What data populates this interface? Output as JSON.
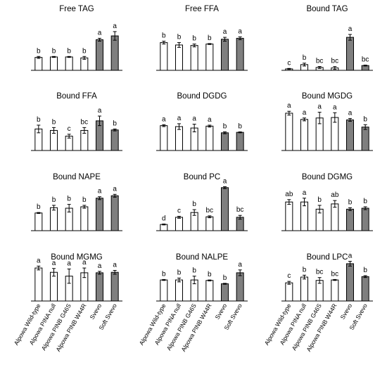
{
  "figure": {
    "categories": [
      "Alpowa Wild-type",
      "Alpowa PINA null",
      "Alpowa PINB G46S",
      "Alpowa PINB W44R",
      "Svevo",
      "Soft Svevo"
    ],
    "bar_colors": [
      "#ffffff",
      "#ffffff",
      "#ffffff",
      "#ffffff",
      "#7f7f7f",
      "#7f7f7f"
    ],
    "bar_stroke": "#000000"
  },
  "chart_data": [
    {
      "type": "bar",
      "title": "Free TAG",
      "categories": [
        "Alpowa Wild-type",
        "Alpowa PINA null",
        "Alpowa PINB G46S",
        "Alpowa PINB W44R",
        "Svevo",
        "Soft Svevo"
      ],
      "values": [
        27,
        28,
        28,
        26,
        64,
        72
      ],
      "errors": [
        2,
        1,
        1,
        3,
        3,
        9
      ],
      "letters": [
        "b",
        "b",
        "b",
        "b",
        "a",
        "a"
      ],
      "ylim": [
        0,
        100
      ],
      "show_x_labels": false
    },
    {
      "type": "bar",
      "title": "Free FFA",
      "categories": [
        "Alpowa Wild-type",
        "Alpowa PINA null",
        "Alpowa PINB G46S",
        "Alpowa PINB W44R",
        "Svevo",
        "Soft Svevo"
      ],
      "values": [
        58,
        53,
        52,
        55,
        65,
        67
      ],
      "errors": [
        3,
        5,
        3,
        1,
        4,
        3
      ],
      "letters": [
        "b",
        "b",
        "b",
        "b",
        "a",
        "a"
      ],
      "ylim": [
        0,
        100
      ],
      "show_x_labels": false
    },
    {
      "type": "bar",
      "title": "Bound TAG",
      "categories": [
        "Alpowa Wild-type",
        "Alpowa PINA null",
        "Alpowa PINB G46S",
        "Alpowa PINB W44R",
        "Svevo",
        "Soft Svevo"
      ],
      "values": [
        3,
        12,
        6,
        5,
        69,
        10
      ],
      "errors": [
        1,
        3,
        2,
        3,
        6,
        1
      ],
      "letters": [
        "c",
        "b",
        "bc",
        "bc",
        "a",
        "bc"
      ],
      "ylim": [
        0,
        100
      ],
      "show_x_labels": false
    },
    {
      "type": "bar",
      "title": "Bound FFA",
      "categories": [
        "Alpowa Wild-type",
        "Alpowa PINA null",
        "Alpowa PINB G46S",
        "Alpowa PINB W44R",
        "Svevo",
        "Soft Svevo"
      ],
      "values": [
        45,
        42,
        30,
        42,
        62,
        43
      ],
      "errors": [
        8,
        6,
        4,
        6,
        10,
        2
      ],
      "letters": [
        "b",
        "b",
        "c",
        "bc",
        "a",
        "b"
      ],
      "ylim": [
        0,
        100
      ],
      "show_x_labels": false
    },
    {
      "type": "bar",
      "title": "Bound DGDG",
      "categories": [
        "Alpowa Wild-type",
        "Alpowa PINA null",
        "Alpowa PINB G46S",
        "Alpowa PINB W44R",
        "Svevo",
        "Soft Svevo"
      ],
      "values": [
        52,
        50,
        47,
        51,
        37,
        38
      ],
      "errors": [
        2,
        6,
        8,
        2,
        2,
        1
      ],
      "letters": [
        "a",
        "a",
        "a",
        "a",
        "b",
        "b"
      ],
      "ylim": [
        0,
        100
      ],
      "show_x_labels": false
    },
    {
      "type": "bar",
      "title": "Bound MGDG",
      "categories": [
        "Alpowa Wild-type",
        "Alpowa PINA null",
        "Alpowa PINB G46S",
        "Alpowa PINB W44R",
        "Svevo",
        "Soft Svevo"
      ],
      "values": [
        78,
        65,
        68,
        69,
        64,
        49
      ],
      "errors": [
        4,
        3,
        12,
        10,
        3,
        5
      ],
      "letters": [
        "a",
        "a",
        "a",
        "a",
        "a",
        "b"
      ],
      "ylim": [
        0,
        100
      ],
      "show_x_labels": false
    },
    {
      "type": "bar",
      "title": "Bound NAPE",
      "categories": [
        "Alpowa Wild-type",
        "Alpowa PINA null",
        "Alpowa PINB G46S",
        "Alpowa PINB W44R",
        "Svevo",
        "Soft Svevo"
      ],
      "values": [
        37,
        48,
        47,
        50,
        68,
        73
      ],
      "errors": [
        1,
        5,
        8,
        3,
        3,
        3
      ],
      "letters": [
        "b",
        "b",
        "b",
        "b",
        "a",
        "a"
      ],
      "ylim": [
        0,
        100
      ],
      "show_x_labels": false
    },
    {
      "type": "bar",
      "title": "Bound PC",
      "categories": [
        "Alpowa Wild-type",
        "Alpowa PINA null",
        "Alpowa PINB G46S",
        "Alpowa PINB W44R",
        "Svevo",
        "Soft Svevo"
      ],
      "values": [
        13,
        28,
        38,
        29,
        90,
        28
      ],
      "errors": [
        1,
        2,
        6,
        2,
        2,
        4
      ],
      "letters": [
        "d",
        "c",
        "b",
        "bc",
        "a",
        "bc"
      ],
      "ylim": [
        0,
        100
      ],
      "show_x_labels": false
    },
    {
      "type": "bar",
      "title": "Bound DGMG",
      "categories": [
        "Alpowa Wild-type",
        "Alpowa PINA null",
        "Alpowa PINB G46S",
        "Alpowa PINB W44R",
        "Svevo",
        "Soft Svevo"
      ],
      "values": [
        60,
        60,
        45,
        56,
        45,
        47
      ],
      "errors": [
        5,
        8,
        8,
        7,
        3,
        3
      ],
      "letters": [
        "ab",
        "a",
        "b",
        "ab",
        "b",
        "b"
      ],
      "ylim": [
        0,
        100
      ],
      "show_x_labels": false
    },
    {
      "type": "bar",
      "title": "Bound MGMG",
      "categories": [
        "Alpowa Wild-type",
        "Alpowa PINA null",
        "Alpowa PINB G46S",
        "Alpowa PINB W44R",
        "Svevo",
        "Soft Svevo"
      ],
      "values": [
        69,
        60,
        52,
        59,
        59,
        60
      ],
      "errors": [
        4,
        8,
        15,
        10,
        3,
        4
      ],
      "letters": [
        "a",
        "a",
        "a",
        "a",
        "a",
        "a"
      ],
      "ylim": [
        0,
        100
      ],
      "show_x_labels": true
    },
    {
      "type": "bar",
      "title": "Bound NALPE",
      "categories": [
        "Alpowa Wild-type",
        "Alpowa PINA null",
        "Alpowa PINB G46S",
        "Alpowa PINB W44R",
        "Svevo",
        "Soft Svevo"
      ],
      "values": [
        44,
        44,
        44,
        43,
        36,
        59
      ],
      "errors": [
        1,
        4,
        8,
        1,
        1,
        6
      ],
      "letters": [
        "b",
        "b",
        "b",
        "b",
        "b",
        "a"
      ],
      "ylim": [
        0,
        100
      ],
      "show_x_labels": true
    },
    {
      "type": "bar",
      "title": "Bound LPC",
      "categories": [
        "Alpowa Wild-type",
        "Alpowa PINA null",
        "Alpowa PINB G46S",
        "Alpowa PINB W44R",
        "Svevo",
        "Soft Svevo"
      ],
      "values": [
        38,
        50,
        43,
        44,
        78,
        51
      ],
      "errors": [
        3,
        4,
        6,
        1,
        5,
        2
      ],
      "letters": [
        "c",
        "b",
        "bc",
        "bc",
        "a",
        "b"
      ],
      "ylim": [
        0,
        100
      ],
      "show_x_labels": true
    }
  ]
}
